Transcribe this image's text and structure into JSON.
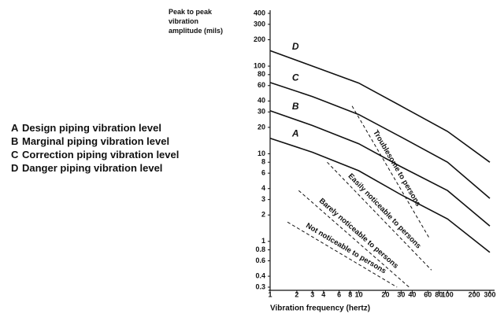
{
  "chart_data": {
    "type": "line",
    "ylabel": "Peak to peak vibration amplitude (mils)",
    "xlabel": "Vibration frequency (hertz)",
    "xscale": "log",
    "yscale": "log",
    "xlim": [
      1,
      300
    ],
    "ylim": [
      0.3,
      400
    ],
    "xticks": [
      1,
      2,
      3,
      4,
      6,
      8,
      10,
      20,
      30,
      40,
      60,
      80,
      100,
      200,
      300
    ],
    "yticks": [
      400,
      300,
      200,
      100,
      80,
      60,
      40,
      30,
      20,
      10,
      8,
      6,
      4,
      3,
      2,
      1,
      0.8,
      0.6,
      0.4,
      0.3
    ],
    "series": [
      {
        "name": "A",
        "description": "Design piping vibration level",
        "color": "#111111",
        "style": "solid",
        "x": [
          1,
          3,
          10,
          30,
          100,
          300
        ],
        "values": [
          15,
          10.4,
          6.4,
          3.4,
          1.8,
          0.75
        ]
      },
      {
        "name": "B",
        "description": "Marginal piping vibration level",
        "color": "#111111",
        "style": "solid",
        "x": [
          1,
          3,
          10,
          30,
          100,
          300
        ],
        "values": [
          31,
          21,
          13,
          7.1,
          3.8,
          1.5
        ]
      },
      {
        "name": "C",
        "description": "Correction piping vibration level",
        "color": "#111111",
        "style": "solid",
        "x": [
          1,
          3,
          10,
          30,
          100,
          300
        ],
        "values": [
          65,
          45,
          28,
          15.5,
          8,
          3.1
        ]
      },
      {
        "name": "D",
        "description": "Danger piping vibration level",
        "color": "#111111",
        "style": "solid",
        "x": [
          1,
          3,
          10,
          30,
          100,
          300
        ],
        "values": [
          150,
          100,
          64,
          35,
          18,
          8
        ]
      },
      {
        "name": "Troublesome to persons",
        "color": "#111111",
        "style": "dashed",
        "x": [
          8.4,
          62
        ],
        "values": [
          35,
          1.1
        ]
      },
      {
        "name": "Easily noticeable to persons",
        "color": "#111111",
        "style": "dashed",
        "x": [
          4.4,
          66
        ],
        "values": [
          8,
          0.47
        ]
      },
      {
        "name": "Barely noticeable to persons",
        "color": "#111111",
        "style": "dashed",
        "x": [
          2.1,
          37
        ],
        "values": [
          3.8,
          0.3
        ]
      },
      {
        "name": "Not noticeable to persons",
        "color": "#111111",
        "style": "dashed",
        "x": [
          1.57,
          27
        ],
        "values": [
          1.66,
          0.3
        ]
      }
    ]
  }
}
